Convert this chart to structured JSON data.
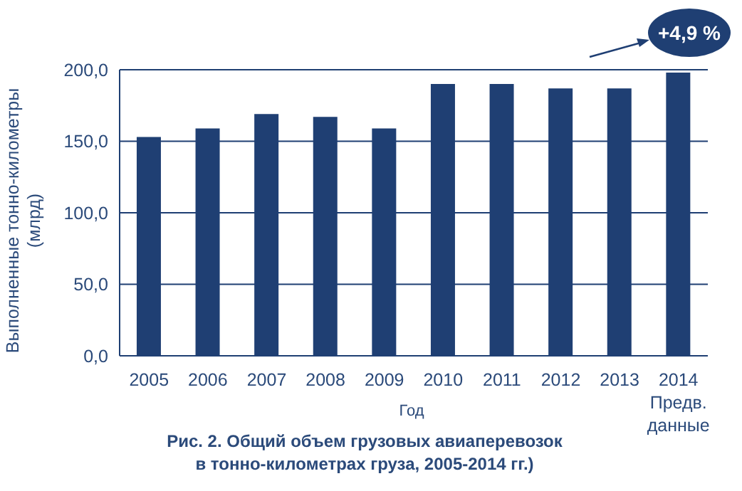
{
  "chart_data": {
    "type": "bar",
    "title": "Рис.  2. Общий объем грузовых авиаперевозок в тонно-километрах груза, 2005-2014 гг.)",
    "xlabel": "Год",
    "ylabel": "Выполненные тонно-километры (млрд)",
    "categories": [
      "2005",
      "2006",
      "2007",
      "2008",
      "2009",
      "2010",
      "2011",
      "2012",
      "2013",
      "2014 Предв. данные"
    ],
    "values": [
      153,
      159,
      169,
      167,
      159,
      190,
      190,
      187,
      187,
      198
    ],
    "color": "#1f3f73",
    "ylim": [
      0,
      200
    ],
    "yticks": [
      {
        "value": 0,
        "label": "0,0"
      },
      {
        "value": 50,
        "label": "50,0"
      },
      {
        "value": 100,
        "label": "100,0"
      },
      {
        "value": 150,
        "label": "150,0"
      },
      {
        "value": 200,
        "label": "200,0"
      }
    ],
    "grid": "y",
    "legend": false,
    "annotations": [
      "+4,9 %"
    ]
  }
}
